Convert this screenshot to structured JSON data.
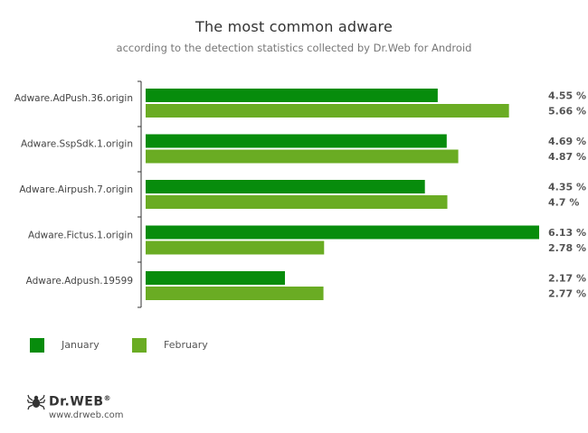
{
  "chart_data": {
    "type": "bar",
    "orientation": "horizontal",
    "title": "The most common adware",
    "subtitle": "according to the detection statistics collected by Dr.Web for Android",
    "categories": [
      "Adware.AdPush.36.origin",
      "Adware.SspSdk.1.origin",
      "Adware.Airpush.7.origin",
      "Adware.Fictus.1.origin",
      "Adware.Adpush.19599"
    ],
    "series": [
      {
        "name": "January",
        "color": "#078c0c",
        "values": [
          4.55,
          4.69,
          4.35,
          6.13,
          2.17
        ],
        "labels": [
          "4.55 %",
          "4.69 %",
          "4.35 %",
          "6.13 %",
          "2.17 %"
        ]
      },
      {
        "name": "February",
        "color": "#6aac23",
        "values": [
          5.66,
          4.87,
          4.7,
          2.78,
          2.77
        ],
        "labels": [
          "5.66 %",
          "4.87 %",
          "4.7 %",
          "2.78 %",
          "2.77 %"
        ]
      }
    ],
    "xlim": [
      0,
      6.13
    ],
    "grid": false,
    "legend_position": "bottom-left"
  },
  "logo": {
    "brand": "Dr.WEB",
    "registered": "®",
    "url": "www.drweb.com"
  }
}
